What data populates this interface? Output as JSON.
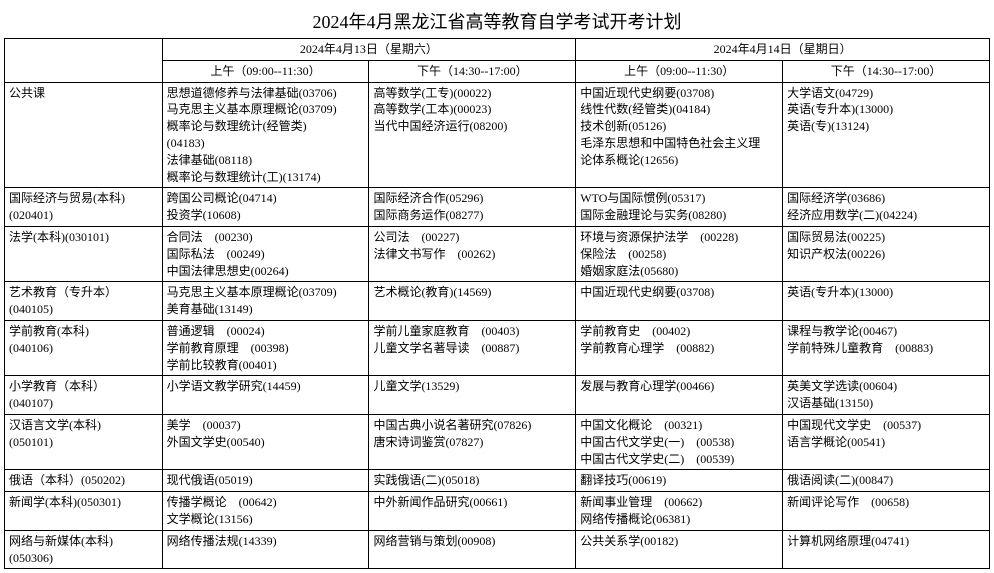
{
  "title": "2024年4月黑龙江省高等教育自学考试开考计划",
  "header": {
    "day1": "2024年4月13日（星期六）",
    "day2": "2024年4月14日（星期日）",
    "slot_am": "上午（09:00--11:30）",
    "slot_pm": "下午（14:30--17:00）"
  },
  "rows": [
    {
      "category": [
        "公共课"
      ],
      "slots": [
        [
          "思想道德修养与法律基础(03706)",
          "马克思主义基本原理概论(03709)",
          "概率论与数理统计(经管类)",
          "(04183)",
          "法律基础(08118)",
          "概率论与数理统计(工)(13174)"
        ],
        [
          "高等数学(工专)(00022)",
          "高等数学(工本)(00023)",
          "当代中国经济运行(08200)"
        ],
        [
          "中国近现代史纲要(03708)",
          "线性代数(经管类)(04184)",
          "技术创新(05126)",
          "毛泽东思想和中国特色社会主义理",
          "论体系概论(12656)"
        ],
        [
          "大学语文(04729)",
          "英语(专升本)(13000)",
          "英语(专)(13124)"
        ]
      ]
    },
    {
      "category": [
        "国际经济与贸易(本科)",
        "(020401)"
      ],
      "slots": [
        [
          "跨国公司概论(04714)",
          "投资学(10608)"
        ],
        [
          "国际经济合作(05296)",
          "国际商务运作(08277)"
        ],
        [
          "WTO与国际惯例(05317)",
          "国际金融理论与实务(08280)"
        ],
        [
          "国际经济学(03686)",
          "经济应用数学(二)(04224)"
        ]
      ]
    },
    {
      "category": [
        "法学(本科)(030101)"
      ],
      "slots": [
        [
          "合同法　(00230)",
          "国际私法　(00249)",
          "中国法律思想史(00264)"
        ],
        [
          "公司法　(00227)",
          "法律文书写作　(00262)"
        ],
        [
          "环境与资源保护法学　(00228)",
          "保险法　(00258)",
          "婚姻家庭法(05680)"
        ],
        [
          "国际贸易法(00225)",
          "知识产权法(00226)"
        ]
      ]
    },
    {
      "category": [
        "艺术教育（专升本）",
        "(040105)"
      ],
      "slots": [
        [
          "马克思主义基本原理概论(03709)",
          "美育基础(13149)"
        ],
        [
          "艺术概论(教育)(14569)"
        ],
        [
          "中国近现代史纲要(03708)"
        ],
        [
          "英语(专升本)(13000)"
        ]
      ]
    },
    {
      "category": [
        "学前教育(本科)",
        "(040106)"
      ],
      "slots": [
        [
          "普通逻辑　(00024)",
          "学前教育原理　(00398)",
          "学前比较教育(00401)"
        ],
        [
          "学前儿童家庭教育　(00403)",
          "儿童文学名著导读　(00887)"
        ],
        [
          "学前教育史　(00402)",
          "学前教育心理学　(00882)"
        ],
        [
          "课程与教学论(00467)",
          "学前特殊儿童教育　(00883)"
        ]
      ]
    },
    {
      "category": [
        "小学教育（本科）",
        "(040107)"
      ],
      "slots": [
        [
          "小学语文教学研究(14459)"
        ],
        [
          "儿童文学(13529)"
        ],
        [
          "发展与教育心理学(00466)"
        ],
        [
          "英美文学选读(00604)",
          "汉语基础(13150)"
        ]
      ]
    },
    {
      "category": [
        "汉语言文学(本科)",
        "(050101)"
      ],
      "slots": [
        [
          "美学　(00037)",
          "外国文学史(00540)"
        ],
        [
          "中国古典小说名著研究(07826)",
          "唐宋诗词鉴赏(07827)"
        ],
        [
          "中国文化概论　(00321)",
          "中国古代文学史(一)　(00538)",
          "中国古代文学史(二)　(00539)"
        ],
        [
          "中国现代文学史　(00537)",
          "语言学概论(00541)"
        ]
      ]
    },
    {
      "category": [
        "俄语（本科）(050202)"
      ],
      "slots": [
        [
          "现代俄语(05019)"
        ],
        [
          "实践俄语(二)(05018)"
        ],
        [
          "翻译技巧(00619)"
        ],
        [
          "俄语阅读(二)(00847)"
        ]
      ]
    },
    {
      "category": [
        "新闻学(本科)(050301)"
      ],
      "slots": [
        [
          "传播学概论　(00642)",
          "文学概论(13156)"
        ],
        [
          "中外新闻作品研究(00661)"
        ],
        [
          "新闻事业管理　(00662)",
          "网络传播概论(06381)"
        ],
        [
          "新闻评论写作　(00658)"
        ]
      ]
    },
    {
      "category": [
        "网络与新媒体(本科)",
        "(050306)"
      ],
      "slots": [
        [
          "网络传播法规(14339)"
        ],
        [
          "网络营销与策划(00908)"
        ],
        [
          "公共关系学(00182)"
        ],
        [
          "计算机网络原理(04741)"
        ]
      ]
    }
  ]
}
